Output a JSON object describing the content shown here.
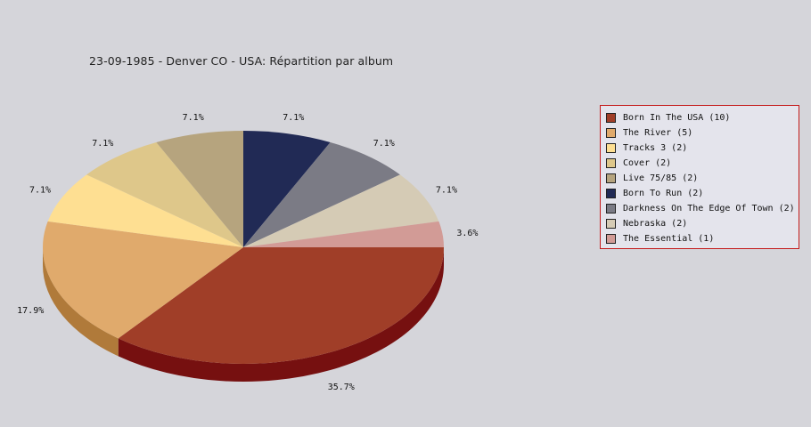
{
  "chart_data": {
    "type": "pie",
    "title": "23-09-1985 - Denver CO - USA:  Répartition par album",
    "legend_position": "right",
    "slices": [
      {
        "label": "Born In The USA (10)",
        "value": 10,
        "percent_label": "35.7%",
        "color": "#a03e28",
        "side_color": "#761010"
      },
      {
        "label": "The River (5)",
        "value": 5,
        "percent_label": "17.9%",
        "color": "#e0aa6c",
        "side_color": "#b07a3a"
      },
      {
        "label": "Tracks 3 (2)",
        "value": 2,
        "percent_label": "7.1%",
        "color": "#fedf92",
        "side_color": "#c8a860"
      },
      {
        "label": "Cover (2)",
        "value": 2,
        "percent_label": "7.1%",
        "color": "#dec78a",
        "side_color": "#a89458"
      },
      {
        "label": "Live 75/85 (2)",
        "value": 2,
        "percent_label": "7.1%",
        "color": "#b6a47e",
        "side_color": "#86744e"
      },
      {
        "label": "Born To Run (2)",
        "value": 2,
        "percent_label": "7.1%",
        "color": "#212a55",
        "side_color": "#101530"
      },
      {
        "label": "Darkness On The Edge Of Town (2)",
        "value": 2,
        "percent_label": "7.1%",
        "color": "#7b7b85",
        "side_color": "#50505a"
      },
      {
        "label": "Nebraska (2)",
        "value": 2,
        "percent_label": "7.1%",
        "color": "#d5cbb5",
        "side_color": "#a89e88"
      },
      {
        "label": "The Essential (1)",
        "value": 1,
        "percent_label": "3.6%",
        "color": "#d29b96",
        "side_color": "#a06a66"
      }
    ]
  }
}
